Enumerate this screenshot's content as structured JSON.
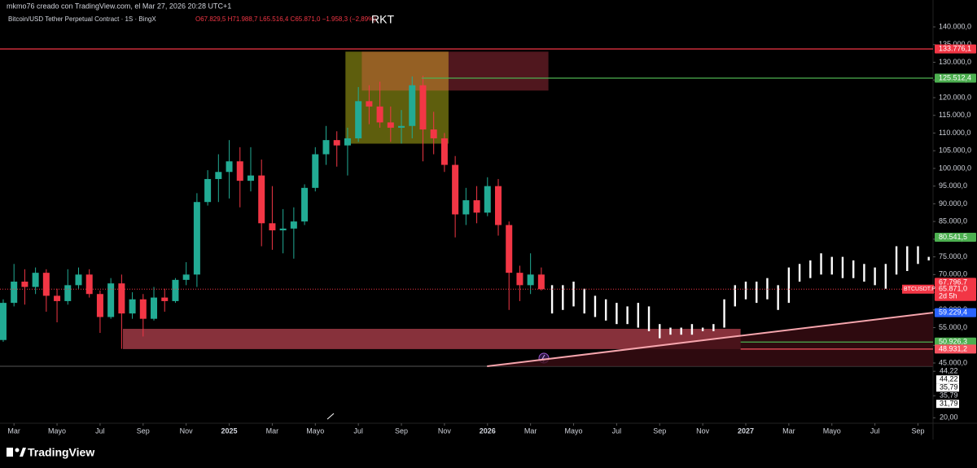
{
  "header": {
    "author": "mkmo76 creado con TradingView.com, el Mar 27, 2026 20:28 UTC+1",
    "symbol": "Bitcoin/USD Tether Perpetual Contract · 1S · BingX",
    "ohlc": "O67.829,5 H71.988,7 L65.516,4 C65.871,0 −1.958,3 (−2,89%)"
  },
  "chart_data": {
    "type": "candlestick",
    "title": "RKT",
    "x": [
      2.5,
      3,
      3.5,
      4,
      4.5,
      5,
      5.5,
      6,
      6.5,
      7,
      7.5,
      8,
      8.5,
      9,
      9.5,
      10,
      10.5,
      11,
      11.5,
      12,
      12.5,
      13,
      13.5,
      14,
      14.5,
      15,
      15.5,
      16,
      16.5,
      17,
      17.5,
      18,
      18.5,
      19,
      19.5,
      20,
      20.5,
      21,
      21.5,
      22,
      22.5,
      23,
      23.5,
      24,
      24.5,
      25,
      25.5,
      26,
      26.5,
      27,
      27.5
    ],
    "open": [
      51500,
      62000,
      68000,
      66500,
      70500,
      64000,
      62500,
      67000,
      70000,
      64500,
      58000,
      67500,
      59000,
      63000,
      57500,
      63500,
      62500,
      68500,
      70000,
      90500,
      97000,
      99000,
      102000,
      96500,
      98000,
      84500,
      82500,
      83000,
      85000,
      94500,
      104000,
      108000,
      106500,
      108500,
      119000,
      117500,
      113000,
      111500,
      112000,
      123500,
      111000,
      108500,
      101000,
      87000,
      91000,
      87500,
      95000,
      84000,
      70500,
      67000,
      70000
    ],
    "high": [
      63000,
      73000,
      71500,
      72000,
      71500,
      66000,
      71500,
      72000,
      71500,
      65500,
      69000,
      70000,
      65000,
      64500,
      66500,
      66000,
      69000,
      73500,
      93000,
      99500,
      104000,
      108000,
      106000,
      106000,
      102500,
      95000,
      88500,
      89000,
      95500,
      106000,
      112000,
      110500,
      111500,
      123000,
      123500,
      124500,
      117500,
      116500,
      126000,
      126200,
      116000,
      110000,
      103500,
      94500,
      95000,
      97500,
      97000,
      85000,
      72500,
      76000,
      72000
    ],
    "low": [
      51000,
      61000,
      61500,
      64500,
      59500,
      56500,
      61500,
      66000,
      63500,
      53500,
      57500,
      49000,
      57500,
      52500,
      57000,
      59500,
      62000,
      67000,
      66500,
      89500,
      90500,
      91500,
      89000,
      93500,
      78000,
      77000,
      76000,
      74500,
      84000,
      93500,
      101000,
      100500,
      98000,
      107500,
      112500,
      111500,
      107500,
      107000,
      108500,
      102000,
      104000,
      99000,
      80500,
      84000,
      84500,
      86500,
      81000,
      60000,
      62500,
      64500,
      65500
    ],
    "close": [
      62000,
      68000,
      66500,
      70500,
      64000,
      62500,
      67000,
      70000,
      64500,
      58000,
      67500,
      59000,
      63000,
      57500,
      63500,
      62500,
      68500,
      70000,
      90500,
      97000,
      99000,
      102000,
      96500,
      98000,
      84500,
      82500,
      83000,
      85000,
      94500,
      104000,
      108000,
      106500,
      108500,
      119000,
      117500,
      113000,
      111500,
      112000,
      123500,
      111000,
      108500,
      101000,
      87000,
      91000,
      87500,
      95000,
      84000,
      70500,
      67000,
      70000,
      65871
    ],
    "up_color": "#22ab94",
    "down_color": "#f23645",
    "projection": {
      "color": "#ffffff",
      "x": [
        28,
        28.5,
        29,
        29.5,
        30,
        30.5,
        31,
        31.5,
        32,
        32.5,
        33,
        33.5,
        34,
        34.5,
        35,
        35.5,
        36,
        36.5,
        37,
        37.5,
        38,
        38.5,
        39,
        39.5,
        40,
        40.5,
        41,
        41.5,
        42,
        42.5,
        43,
        43.5,
        44,
        44.5,
        45,
        45.5
      ],
      "high": [
        67000,
        67000,
        68000,
        66000,
        64000,
        63000,
        62000,
        61000,
        62000,
        61000,
        56000,
        55000,
        55000,
        56000,
        55000,
        56000,
        63000,
        67000,
        68000,
        68000,
        69000,
        67000,
        72000,
        73000,
        74000,
        76000,
        75000,
        75000,
        74000,
        73000,
        72000,
        73000,
        78000,
        78000,
        78000,
        75000
      ],
      "low": [
        59000,
        60000,
        61000,
        59000,
        58000,
        57000,
        56000,
        56000,
        55000,
        54000,
        52000,
        53000,
        53000,
        53000,
        54000,
        54000,
        55000,
        61000,
        63000,
        62000,
        63000,
        60000,
        62000,
        68000,
        69000,
        70000,
        70000,
        69000,
        69000,
        68000,
        67000,
        66000,
        70000,
        71000,
        73000,
        74000
      ]
    },
    "xlim": [
      2.35,
      45.7
    ],
    "xticks": [
      {
        "value": 3,
        "label": "Mar"
      },
      {
        "value": 5,
        "label": "Mayo"
      },
      {
        "value": 7,
        "label": "Jul"
      },
      {
        "value": 9,
        "label": "Sep"
      },
      {
        "value": 11,
        "label": "Nov"
      },
      {
        "value": 13,
        "label": "2025"
      },
      {
        "value": 15,
        "label": "Mar"
      },
      {
        "value": 17,
        "label": "Mayo"
      },
      {
        "value": 19,
        "label": "Jul"
      },
      {
        "value": 21,
        "label": "Sep"
      },
      {
        "value": 23,
        "label": "Nov"
      },
      {
        "value": 25,
        "label": "2026"
      },
      {
        "value": 27,
        "label": "Mar"
      },
      {
        "value": 29,
        "label": "Mayo"
      },
      {
        "value": 31,
        "label": "Jul"
      },
      {
        "value": 33,
        "label": "Sep"
      },
      {
        "value": 35,
        "label": "Nov"
      },
      {
        "value": 37,
        "label": "2027"
      },
      {
        "value": 39,
        "label": "Mar"
      },
      {
        "value": 41,
        "label": "Mayo"
      },
      {
        "value": 43,
        "label": "Jul"
      },
      {
        "value": 45,
        "label": "Sep"
      }
    ],
    "ylim": [
      44080,
      143000
    ],
    "yticks": [
      {
        "value": 45000,
        "label": "45.000,0"
      },
      {
        "value": 50000,
        "label": "50.000,0"
      },
      {
        "value": 55000,
        "label": "55.000,0"
      },
      {
        "value": 60000,
        "label": "60.000,0"
      },
      {
        "value": 65000,
        "label": "65.000,0"
      },
      {
        "value": 70000,
        "label": "70.000,0"
      },
      {
        "value": 75000,
        "label": "75.000,0"
      },
      {
        "value": 80000,
        "label": "80.000,0"
      },
      {
        "value": 85000,
        "label": "85.000,0"
      },
      {
        "value": 90000,
        "label": "90.000,0"
      },
      {
        "value": 95000,
        "label": "95.000,0"
      },
      {
        "value": 100000,
        "label": "100.000,0"
      },
      {
        "value": 105000,
        "label": "105.000,0"
      },
      {
        "value": 110000,
        "label": "110.000,0"
      },
      {
        "value": 115000,
        "label": "115.000,0"
      },
      {
        "value": 120000,
        "label": "120.000,0"
      },
      {
        "value": 125000,
        "label": "125.000,0"
      },
      {
        "value": 130000,
        "label": "130.000,0"
      },
      {
        "value": 135000,
        "label": "135.000,0"
      },
      {
        "value": 140000,
        "label": "140.000,0"
      }
    ],
    "zones": [
      {
        "x": [
          18.4,
          23.19
        ],
        "y": [
          107000,
          133000
        ],
        "color": "#7d7d12"
      },
      {
        "x": [
          19.16,
          23.19
        ],
        "y": [
          122000,
          133000
        ],
        "color": "#a8612c"
      },
      {
        "x": [
          23.19,
          27.83
        ],
        "y": [
          122000,
          133000
        ],
        "color": "#6b1f28"
      },
      {
        "x": [
          8.06,
          36.76
        ],
        "y": [
          48931.2,
          54660
        ],
        "color": "#b4414f"
      }
    ],
    "trendline": {
      "x": [
        24.98,
        45.7
      ],
      "y": [
        44080,
        59229.4
      ],
      "color": "#f6a5ad",
      "fill": "#3a0d13"
    },
    "price_labels": [
      {
        "value": 133776.1,
        "label": "133.776,1",
        "color": "#f23645",
        "line_from": 2.35
      },
      {
        "value": 125512.4,
        "label": "125.512,4",
        "color": "#4caf50",
        "line_from": 21.94
      },
      {
        "value": 80541.5,
        "label": "80.541,5",
        "color": "#4caf50"
      },
      {
        "value": 67796.7,
        "label": "67.796,7",
        "color": "#f23645"
      },
      {
        "value": 65871,
        "label": "65.871,0",
        "color": "#f23645",
        "line_from": 2.35,
        "dotted": true,
        "tag": "BTCUSDT.P",
        "countdown": "2d 5h"
      },
      {
        "value": 59229.4,
        "label": "59.229,4",
        "color": "#2962ff"
      },
      {
        "value": 50926.3,
        "label": "50.926,3",
        "color": "#4caf50",
        "line_from": 36.76
      },
      {
        "value": 48931.2,
        "label": "48.931,2",
        "color": "#f7525f",
        "line_from": 36.76
      }
    ],
    "indicator": {
      "ylim": [
        18,
        46
      ],
      "labels": [
        {
          "value": 44.22,
          "label": "44,22",
          "boxed": false
        },
        {
          "value": 44.22,
          "label": "44,22",
          "boxed": true
        },
        {
          "value": 35.79,
          "label": "35,79",
          "boxed": true
        },
        {
          "value": 35.79,
          "label": "35,79",
          "boxed": false
        },
        {
          "value": 31.79,
          "label": "31,79",
          "boxed": true
        },
        {
          "value": 20,
          "label": "20,00",
          "boxed": false
        }
      ]
    }
  },
  "footer": {
    "brand": "TradingView"
  }
}
